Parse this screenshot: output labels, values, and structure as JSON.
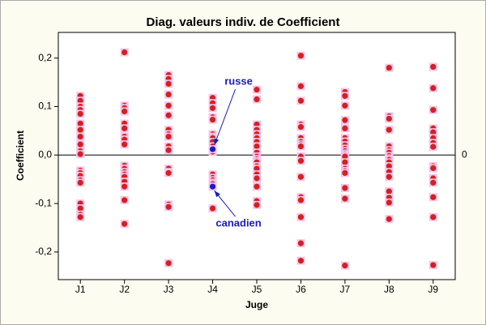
{
  "chart_data": {
    "type": "dotplot",
    "title": "Diag. valeurs indiv. de Coefficient",
    "x_label": "Juge",
    "y_label": "Coefficient",
    "categories": [
      "J1",
      "J2",
      "J3",
      "J4",
      "J5",
      "J6",
      "J7",
      "J8",
      "J9"
    ],
    "color": "#d42020",
    "values": [
      [
        0.122,
        0.112,
        0.1,
        0.093,
        0.085,
        0.065,
        0.052,
        0.038,
        0.022,
        0.008,
        0.002,
        -0.032,
        -0.037,
        -0.043,
        -0.052,
        -0.057,
        -0.1,
        -0.11,
        -0.123,
        -0.128
      ],
      [
        0.212,
        0.102,
        0.097,
        0.09,
        0.065,
        0.055,
        0.038,
        0.032,
        0.022,
        -0.022,
        -0.028,
        -0.035,
        -0.04,
        -0.045,
        -0.055,
        -0.065,
        -0.093,
        -0.142
      ],
      [
        0.165,
        0.157,
        0.147,
        0.125,
        0.102,
        0.082,
        0.052,
        0.043,
        0.038,
        0.018,
        0.01,
        -0.028,
        -0.035,
        -0.037,
        -0.102,
        -0.107,
        -0.223
      ],
      [
        0.118,
        0.107,
        0.097,
        0.078,
        0.073,
        0.043,
        0.038,
        0.035,
        0.027,
        0.018,
        0.007,
        -0.04,
        -0.047,
        -0.052,
        -0.057,
        -0.06,
        -0.11
      ],
      [
        0.135,
        0.115,
        0.063,
        0.052,
        0.043,
        0.035,
        0.027,
        0.018,
        0.005,
        -0.003,
        -0.008,
        -0.012,
        -0.015,
        -0.023,
        -0.028,
        -0.04,
        -0.048,
        -0.065,
        -0.095,
        -0.103
      ],
      [
        0.205,
        0.142,
        0.112,
        0.063,
        0.058,
        0.035,
        0.027,
        0.022,
        0.018,
        -0.003,
        -0.012,
        -0.045,
        -0.087,
        -0.093,
        -0.128,
        -0.182,
        -0.218
      ],
      [
        0.13,
        0.122,
        0.102,
        0.072,
        0.055,
        0.035,
        0.028,
        0.02,
        0.013,
        0.008,
        0.003,
        0,
        -0.003,
        -0.015,
        -0.028,
        -0.033,
        -0.037,
        -0.068,
        -0.09,
        -0.228
      ],
      [
        0.18,
        0.08,
        0.075,
        0.052,
        0.018,
        0.01,
        0.005,
        -0.002,
        -0.007,
        -0.01,
        -0.015,
        -0.023,
        -0.035,
        -0.045,
        -0.075,
        -0.088,
        -0.098,
        -0.132
      ],
      [
        0.182,
        0.138,
        0.093,
        0.055,
        0.047,
        0.035,
        0.025,
        0.017,
        -0.023,
        -0.027,
        -0.048,
        -0.057,
        -0.087,
        -0.128,
        -0.227
      ]
    ],
    "highlights": [
      {
        "category": "J4",
        "value": 0.012,
        "label": "russe",
        "color": "#1a1acc"
      },
      {
        "category": "J4",
        "value": -0.065,
        "label": "canadien",
        "color": "#1a1acc"
      }
    ],
    "reference_line": 0,
    "ylim": [
      -0.257,
      0.253
    ],
    "yticks": [
      {
        "value": -0.2,
        "label": "-0,2"
      },
      {
        "value": -0.1,
        "label": "-0,1"
      },
      {
        "value": 0,
        "label": "0,0"
      },
      {
        "value": 0.1,
        "label": "0,1"
      },
      {
        "value": 0.2,
        "label": "0,2"
      }
    ]
  }
}
